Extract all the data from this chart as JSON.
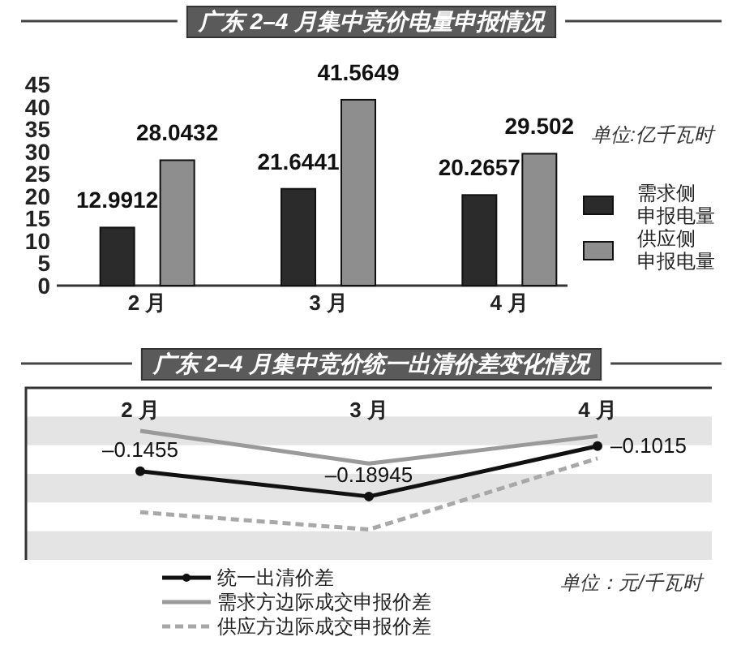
{
  "chart_data": [
    {
      "type": "bar",
      "title": "广东 2–4 月集中竞价电量申报情况",
      "categories": [
        "2 月",
        "3 月",
        "4 月"
      ],
      "series": [
        {
          "name": "需求侧申报电量",
          "color": "#2b2b2b",
          "values": [
            12.9912,
            21.6441,
            20.2657
          ]
        },
        {
          "name": "供应侧申报电量",
          "color": "#8e8e8e",
          "values": [
            28.0432,
            41.5649,
            29.502
          ]
        }
      ],
      "ylim": [
        0,
        45
      ],
      "yticks": [
        0,
        5,
        10,
        15,
        20,
        25,
        30,
        35,
        40,
        45
      ],
      "data_labels": true,
      "legend": "right",
      "annotations": [
        "单位:亿千瓦时"
      ]
    },
    {
      "type": "line",
      "title": "广东 2–4 月集中竞价统一出清价差变化情况",
      "categories": [
        "2 月",
        "3 月",
        "4 月"
      ],
      "series": [
        {
          "name": "统一出清价差",
          "color": "#111111",
          "values": [
            -0.1455,
            -0.18945,
            -0.1015
          ],
          "marker": "circle",
          "line_style": "solid",
          "value_labels": [
            "–0.1455",
            "–0.18945",
            "–0.1015"
          ]
        },
        {
          "name": "需求方边际成交申报价差",
          "color": "#9a9a9a",
          "values": [
            -0.075,
            -0.132,
            -0.084
          ],
          "marker": "none",
          "line_style": "solid"
        },
        {
          "name": "供应方边际成交申报价差",
          "color": "#a8a8a8",
          "values": [
            -0.217,
            -0.247,
            -0.123
          ],
          "marker": "none",
          "line_style": "dashed"
        }
      ],
      "ylim": [
        -0.3,
        0
      ],
      "tick_labels": "x",
      "legend": "bottom left",
      "bands": [
        {
          "axis": "y",
          "from": -0.1,
          "to": -0.05,
          "color": "#e4e4e4"
        },
        {
          "axis": "y",
          "from": -0.2,
          "to": -0.15,
          "color": "#e4e4e4"
        },
        {
          "axis": "y",
          "from": -0.3,
          "to": -0.25,
          "color": "#e4e4e4"
        }
      ],
      "annotations": [
        "单位：元/千瓦时"
      ]
    }
  ]
}
